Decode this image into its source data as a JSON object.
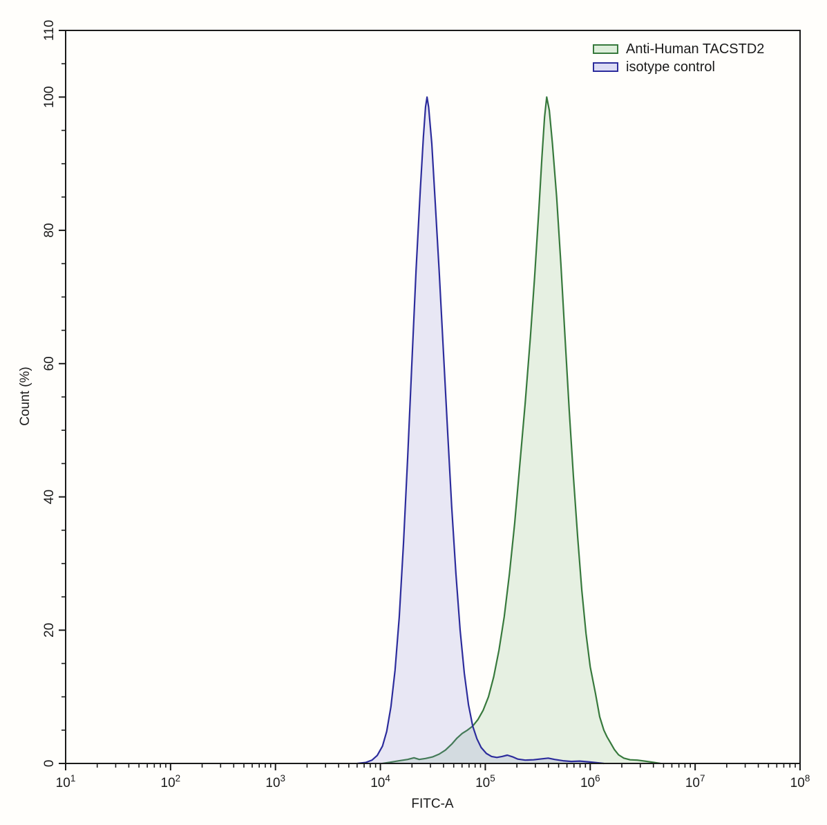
{
  "chart_data": {
    "type": "area",
    "title": "",
    "xlabel": "FITC-A",
    "ylabel": "Count (%)",
    "x_axis": {
      "scale": "log10",
      "log_range": [
        1,
        8
      ],
      "tick_exponents": [
        1,
        2,
        3,
        4,
        5,
        6,
        7,
        8
      ],
      "tick_base": "10",
      "minor_ticks": "log decades k=2..9"
    },
    "y_axis": {
      "range": [
        0,
        110
      ],
      "major_ticks": [
        0,
        20,
        40,
        60,
        80,
        100,
        110
      ],
      "minor_step": 5
    },
    "grid": false,
    "legend": {
      "position": "top-right",
      "entries": [
        {
          "label": "Anti-Human TACSTD2",
          "line_color": "#37793c",
          "fill_color": "#ddeeda"
        },
        {
          "label": "isotype control",
          "line_color": "#2c2c9c",
          "fill_color": "#dcdcf5"
        }
      ]
    },
    "series": [
      {
        "name": "Anti-Human TACSTD2",
        "line_color": "#37793c",
        "fill_color": "rgba(105,170,105,0.17)",
        "peak_log10x": 5.585,
        "peak_pct": 100,
        "points_log10x_pct": [
          [
            4.02,
            0
          ],
          [
            4.1,
            0.2
          ],
          [
            4.18,
            0.4
          ],
          [
            4.26,
            0.6
          ],
          [
            4.32,
            0.85
          ],
          [
            4.37,
            0.6
          ],
          [
            4.43,
            0.75
          ],
          [
            4.5,
            1.0
          ],
          [
            4.56,
            1.4
          ],
          [
            4.62,
            2.0
          ],
          [
            4.68,
            2.9
          ],
          [
            4.73,
            3.8
          ],
          [
            4.78,
            4.5
          ],
          [
            4.83,
            5.0
          ],
          [
            4.88,
            5.6
          ],
          [
            4.93,
            6.6
          ],
          [
            4.98,
            8.0
          ],
          [
            5.03,
            10
          ],
          [
            5.08,
            13
          ],
          [
            5.13,
            17
          ],
          [
            5.18,
            22
          ],
          [
            5.23,
            28.5
          ],
          [
            5.28,
            36
          ],
          [
            5.33,
            45
          ],
          [
            5.38,
            54
          ],
          [
            5.43,
            64
          ],
          [
            5.47,
            73
          ],
          [
            5.51,
            83
          ],
          [
            5.54,
            91
          ],
          [
            5.565,
            97
          ],
          [
            5.585,
            100
          ],
          [
            5.61,
            98
          ],
          [
            5.64,
            93
          ],
          [
            5.68,
            85
          ],
          [
            5.72,
            75
          ],
          [
            5.76,
            64
          ],
          [
            5.8,
            53
          ],
          [
            5.84,
            43
          ],
          [
            5.88,
            34
          ],
          [
            5.92,
            26
          ],
          [
            5.96,
            19.5
          ],
          [
            6.0,
            14.5
          ],
          [
            6.05,
            10.5
          ],
          [
            6.09,
            7
          ],
          [
            6.13,
            5
          ],
          [
            6.16,
            4
          ],
          [
            6.19,
            3.2
          ],
          [
            6.23,
            2.1
          ],
          [
            6.27,
            1.3
          ],
          [
            6.32,
            0.8
          ],
          [
            6.38,
            0.55
          ],
          [
            6.45,
            0.5
          ],
          [
            6.52,
            0.35
          ],
          [
            6.6,
            0.18
          ],
          [
            6.67,
            0
          ]
        ]
      },
      {
        "name": "isotype control",
        "line_color": "#2c2c9c",
        "fill_color": "rgba(125,125,215,0.18)",
        "peak_log10x": 4.445,
        "peak_pct": 100,
        "points_log10x_pct": [
          [
            3.78,
            0
          ],
          [
            3.86,
            0.15
          ],
          [
            3.92,
            0.5
          ],
          [
            3.97,
            1.2
          ],
          [
            4.02,
            2.6
          ],
          [
            4.06,
            4.8
          ],
          [
            4.1,
            8.5
          ],
          [
            4.14,
            14
          ],
          [
            4.18,
            22
          ],
          [
            4.22,
            33
          ],
          [
            4.26,
            46
          ],
          [
            4.3,
            60
          ],
          [
            4.34,
            74
          ],
          [
            4.38,
            86
          ],
          [
            4.41,
            94
          ],
          [
            4.43,
            98.5
          ],
          [
            4.445,
            100
          ],
          [
            4.46,
            98.5
          ],
          [
            4.49,
            93
          ],
          [
            4.52,
            85
          ],
          [
            4.56,
            74
          ],
          [
            4.6,
            62
          ],
          [
            4.64,
            50
          ],
          [
            4.68,
            38.5
          ],
          [
            4.72,
            28.5
          ],
          [
            4.76,
            20
          ],
          [
            4.8,
            13.5
          ],
          [
            4.84,
            8.8
          ],
          [
            4.88,
            5.6
          ],
          [
            4.92,
            3.7
          ],
          [
            4.96,
            2.4
          ],
          [
            5.01,
            1.5
          ],
          [
            5.06,
            1.05
          ],
          [
            5.11,
            0.9
          ],
          [
            5.16,
            1.05
          ],
          [
            5.21,
            1.25
          ],
          [
            5.26,
            1.0
          ],
          [
            5.31,
            0.65
          ],
          [
            5.38,
            0.5
          ],
          [
            5.46,
            0.55
          ],
          [
            5.54,
            0.7
          ],
          [
            5.6,
            0.8
          ],
          [
            5.66,
            0.6
          ],
          [
            5.74,
            0.4
          ],
          [
            5.82,
            0.3
          ],
          [
            5.9,
            0.35
          ],
          [
            5.98,
            0.25
          ],
          [
            6.06,
            0.12
          ],
          [
            6.13,
            0
          ]
        ]
      }
    ],
    "style": {
      "background": "#fffefb",
      "axis_color": "#1a1a1a",
      "text_color": "#1a1a1a"
    }
  }
}
